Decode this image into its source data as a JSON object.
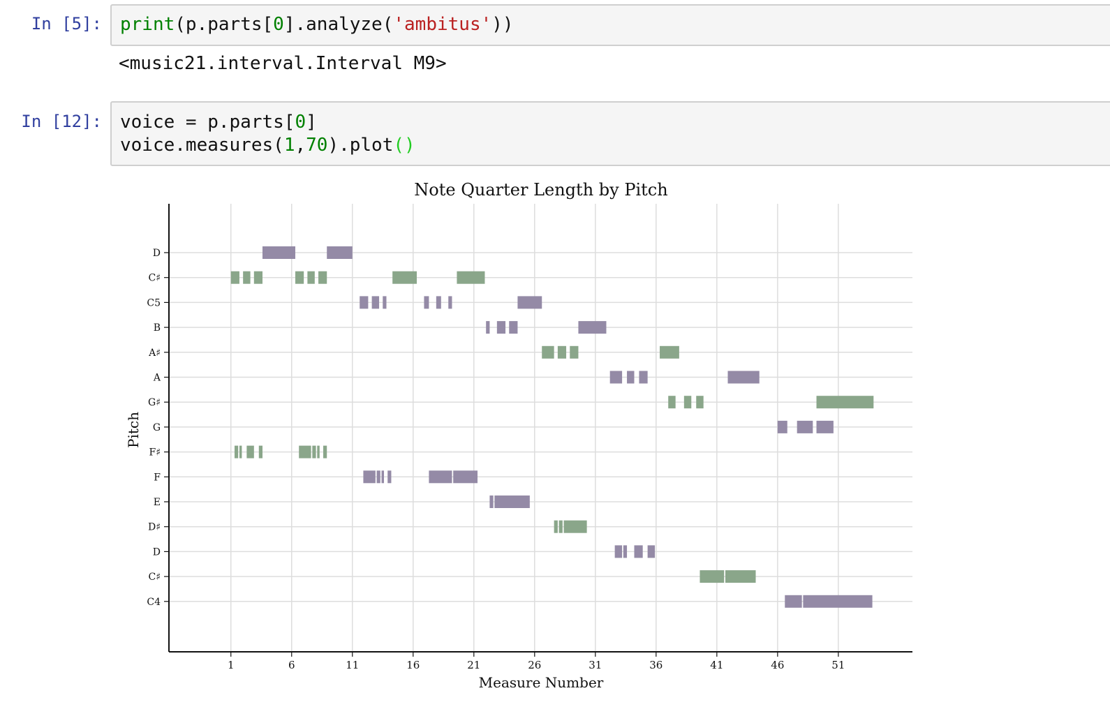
{
  "cells": [
    {
      "prompt": "In [5]:",
      "code_lines": [
        [
          {
            "text": "print",
            "cls": "tok-builtin"
          },
          {
            "text": "(p.parts[",
            "cls": ""
          },
          {
            "text": "0",
            "cls": "tok-num"
          },
          {
            "text": "].analyze(",
            "cls": ""
          },
          {
            "text": "'ambitus'",
            "cls": "tok-str"
          },
          {
            "text": "))",
            "cls": ""
          }
        ]
      ],
      "output": "<music21.interval.Interval M9>"
    },
    {
      "prompt": "In [12]:",
      "code_lines": [
        [
          {
            "text": "voice = p.parts[",
            "cls": ""
          },
          {
            "text": "0",
            "cls": "tok-num"
          },
          {
            "text": "]",
            "cls": ""
          }
        ],
        [
          {
            "text": "voice.measures(",
            "cls": ""
          },
          {
            "text": "1",
            "cls": "tok-num"
          },
          {
            "text": ",",
            "cls": ""
          },
          {
            "text": "70",
            "cls": "tok-num"
          },
          {
            "text": ").plot",
            "cls": ""
          },
          {
            "text": "()",
            "cls": "tok-paren"
          }
        ]
      ]
    }
  ],
  "chart_data": {
    "type": "broken_barh",
    "title": "Note Quarter Length by Pitch",
    "xlabel": "Measure Number",
    "ylabel": "Pitch",
    "x_ticks": [
      "1",
      "6",
      "11",
      "16",
      "21",
      "26",
      "31",
      "36",
      "41",
      "46",
      "51"
    ],
    "x_tick_measures": [
      1,
      6,
      11,
      16,
      21,
      26,
      31,
      36,
      41,
      46,
      51
    ],
    "xlim": [
      -4.1,
      57.1
    ],
    "pitches": [
      "C4",
      "C♯",
      "D",
      "D♯",
      "E",
      "F",
      "F♯",
      "G",
      "G♯",
      "A",
      "A♯",
      "B",
      "C5",
      "C♯",
      "D"
    ],
    "grid": true,
    "colors": {
      "natural": "#948aa6",
      "sharp": "#8aa68a",
      "grid": "#dddddd"
    },
    "notes": [
      {
        "pitch": "D",
        "level": 14,
        "start": 3.6,
        "end": 6.3
      },
      {
        "pitch": "D",
        "level": 14,
        "start": 8.9,
        "end": 11.0
      },
      {
        "pitch": "C♯",
        "level": 13,
        "start": 1.0,
        "end": 1.7
      },
      {
        "pitch": "C♯",
        "level": 13,
        "start": 2.0,
        "end": 2.6
      },
      {
        "pitch": "C♯",
        "level": 13,
        "start": 2.9,
        "end": 3.6
      },
      {
        "pitch": "C♯",
        "level": 13,
        "start": 6.3,
        "end": 7.0
      },
      {
        "pitch": "C♯",
        "level": 13,
        "start": 7.3,
        "end": 7.9
      },
      {
        "pitch": "C♯",
        "level": 13,
        "start": 8.2,
        "end": 8.9
      },
      {
        "pitch": "C♯",
        "level": 13,
        "start": 14.3,
        "end": 16.3
      },
      {
        "pitch": "C♯",
        "level": 13,
        "start": 19.6,
        "end": 21.9
      },
      {
        "pitch": "C5",
        "level": 12,
        "start": 11.6,
        "end": 12.3
      },
      {
        "pitch": "C5",
        "level": 12,
        "start": 12.6,
        "end": 13.2
      },
      {
        "pitch": "C5",
        "level": 12,
        "start": 13.5,
        "end": 13.8
      },
      {
        "pitch": "C5",
        "level": 12,
        "start": 16.9,
        "end": 17.3
      },
      {
        "pitch": "C5",
        "level": 12,
        "start": 17.9,
        "end": 18.3
      },
      {
        "pitch": "C5",
        "level": 12,
        "start": 18.9,
        "end": 19.2
      },
      {
        "pitch": "C5",
        "level": 12,
        "start": 24.6,
        "end": 26.6
      },
      {
        "pitch": "B",
        "level": 11,
        "start": 22.0,
        "end": 22.3
      },
      {
        "pitch": "B",
        "level": 11,
        "start": 22.9,
        "end": 23.6
      },
      {
        "pitch": "B",
        "level": 11,
        "start": 23.9,
        "end": 24.6
      },
      {
        "pitch": "B",
        "level": 11,
        "start": 29.6,
        "end": 31.9
      },
      {
        "pitch": "A♯",
        "level": 10,
        "start": 26.6,
        "end": 27.6
      },
      {
        "pitch": "A♯",
        "level": 10,
        "start": 27.9,
        "end": 28.6
      },
      {
        "pitch": "A♯",
        "level": 10,
        "start": 28.9,
        "end": 29.6
      },
      {
        "pitch": "A♯",
        "level": 10,
        "start": 36.3,
        "end": 37.9
      },
      {
        "pitch": "A",
        "level": 9,
        "start": 32.2,
        "end": 33.2
      },
      {
        "pitch": "A",
        "level": 9,
        "start": 33.6,
        "end": 34.2
      },
      {
        "pitch": "A",
        "level": 9,
        "start": 34.6,
        "end": 35.3
      },
      {
        "pitch": "A",
        "level": 9,
        "start": 41.9,
        "end": 44.5
      },
      {
        "pitch": "G♯",
        "level": 8,
        "start": 37.0,
        "end": 37.6
      },
      {
        "pitch": "G♯",
        "level": 8,
        "start": 38.3,
        "end": 38.9
      },
      {
        "pitch": "G♯",
        "level": 8,
        "start": 39.3,
        "end": 39.9
      },
      {
        "pitch": "G♯",
        "level": 8,
        "start": 49.2,
        "end": 53.9
      },
      {
        "pitch": "G",
        "level": 7,
        "start": 46.0,
        "end": 46.8
      },
      {
        "pitch": "G",
        "level": 7,
        "start": 47.6,
        "end": 48.9
      },
      {
        "pitch": "G",
        "level": 7,
        "start": 49.2,
        "end": 50.6
      },
      {
        "pitch": "F♯",
        "level": 6,
        "start": 1.3,
        "end": 1.6
      },
      {
        "pitch": "F♯",
        "level": 6,
        "start": 1.7,
        "end": 1.9
      },
      {
        "pitch": "F♯",
        "level": 6,
        "start": 2.3,
        "end": 2.9
      },
      {
        "pitch": "F♯",
        "level": 6,
        "start": 3.3,
        "end": 3.6
      },
      {
        "pitch": "F♯",
        "level": 6,
        "start": 6.6,
        "end": 7.6
      },
      {
        "pitch": "F♯",
        "level": 6,
        "start": 7.7,
        "end": 8.0
      },
      {
        "pitch": "F♯",
        "level": 6,
        "start": 8.1,
        "end": 8.3
      },
      {
        "pitch": "F♯",
        "level": 6,
        "start": 8.6,
        "end": 8.9
      },
      {
        "pitch": "F",
        "level": 5,
        "start": 11.9,
        "end": 12.9
      },
      {
        "pitch": "F",
        "level": 5,
        "start": 13.0,
        "end": 13.3
      },
      {
        "pitch": "F",
        "level": 5,
        "start": 13.4,
        "end": 13.6
      },
      {
        "pitch": "F",
        "level": 5,
        "start": 13.9,
        "end": 14.2
      },
      {
        "pitch": "F",
        "level": 5,
        "start": 17.3,
        "end": 19.2
      },
      {
        "pitch": "F",
        "level": 5,
        "start": 19.3,
        "end": 21.3
      },
      {
        "pitch": "E",
        "level": 4,
        "start": 22.3,
        "end": 22.6
      },
      {
        "pitch": "E",
        "level": 4,
        "start": 22.7,
        "end": 25.6
      },
      {
        "pitch": "D♯",
        "level": 3,
        "start": 27.6,
        "end": 27.9
      },
      {
        "pitch": "D♯",
        "level": 3,
        "start": 28.0,
        "end": 28.3
      },
      {
        "pitch": "D♯",
        "level": 3,
        "start": 28.4,
        "end": 30.3
      },
      {
        "pitch": "D",
        "level": 2,
        "start": 32.6,
        "end": 33.2
      },
      {
        "pitch": "D",
        "level": 2,
        "start": 33.3,
        "end": 33.6
      },
      {
        "pitch": "D",
        "level": 2,
        "start": 34.2,
        "end": 34.9
      },
      {
        "pitch": "D",
        "level": 2,
        "start": 35.3,
        "end": 35.9
      },
      {
        "pitch": "C♯",
        "level": 1,
        "start": 39.6,
        "end": 41.6
      },
      {
        "pitch": "C♯",
        "level": 1,
        "start": 41.7,
        "end": 44.2
      },
      {
        "pitch": "C4",
        "level": 0,
        "start": 46.6,
        "end": 48.0
      },
      {
        "pitch": "C4",
        "level": 0,
        "start": 48.1,
        "end": 53.8
      }
    ]
  }
}
